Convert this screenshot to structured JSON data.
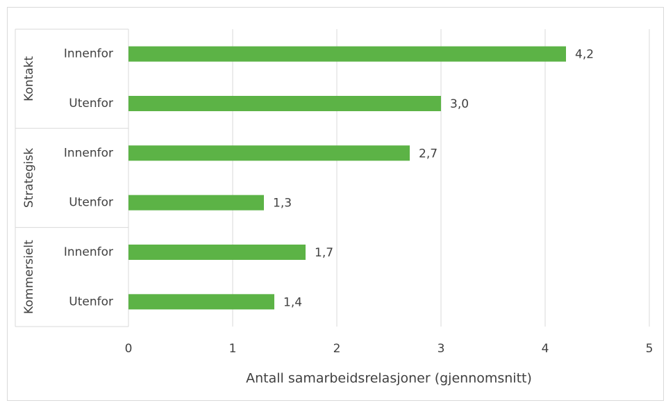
{
  "chart_data": {
    "type": "bar",
    "orientation": "horizontal",
    "color": "#5cb346",
    "x_label": "Antall samarbeidsrelasjoner (gjennomsnitt)",
    "groups": [
      {
        "name": "Kontakt",
        "categories": [
          "Innenfor",
          "Utenfor"
        ],
        "values": [
          4.2,
          3.0
        ],
        "value_labels": [
          "4,2",
          "3,0"
        ]
      },
      {
        "name": "Strategisk",
        "categories": [
          "Innenfor",
          "Utenfor"
        ],
        "values": [
          2.7,
          1.3
        ],
        "value_labels": [
          "2,7",
          "1,3"
        ]
      },
      {
        "name": "Kommersielt",
        "categories": [
          "Innenfor",
          "Utenfor"
        ],
        "values": [
          1.7,
          1.4
        ],
        "value_labels": [
          "1,7",
          "1,4"
        ]
      }
    ],
    "xlim": [
      0,
      5
    ],
    "xticks": [
      0,
      1,
      2,
      3,
      4,
      5
    ],
    "grid": true
  }
}
